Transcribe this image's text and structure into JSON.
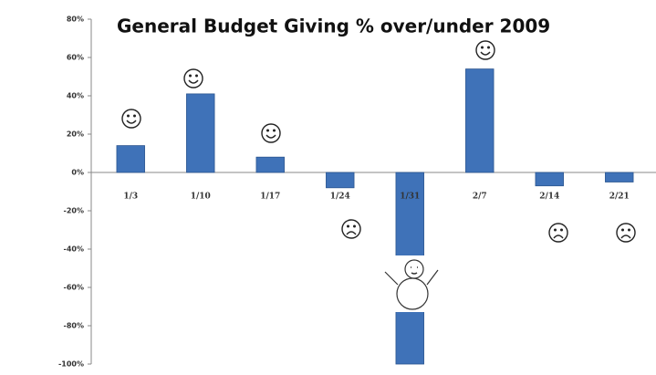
{
  "chart_data": {
    "type": "bar",
    "title": "General Budget Giving % over/under 2009",
    "categories": [
      "1/3",
      "1/10",
      "1/17",
      "1/24",
      "1/31",
      "2/7",
      "2/14",
      "2/21"
    ],
    "values": [
      14,
      41,
      8,
      -8,
      -100,
      54,
      -7,
      -5
    ],
    "color": "#3f72b8",
    "ylim": [
      -100,
      80
    ],
    "yticks": [
      {
        "value": -100,
        "label": "-100%"
      },
      {
        "value": -80,
        "label": "-80%"
      },
      {
        "value": -60,
        "label": "-60%"
      },
      {
        "value": -40,
        "label": "-40%"
      },
      {
        "value": -20,
        "label": "-20%"
      },
      {
        "value": 0,
        "label": "0%"
      },
      {
        "value": 20,
        "label": "20%"
      },
      {
        "value": 40,
        "label": "40%"
      },
      {
        "value": 60,
        "label": "60%"
      },
      {
        "value": 80,
        "label": "80%"
      }
    ],
    "grid": false
  }
}
